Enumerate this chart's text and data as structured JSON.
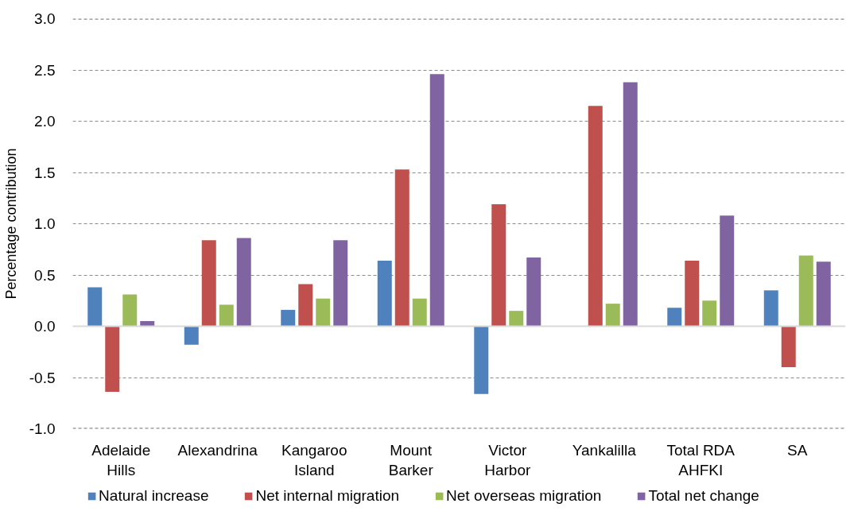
{
  "chart_data": {
    "type": "bar",
    "ylabel": "Percentage contribution",
    "categories": [
      "Adelaide Hills",
      "Alexandrina",
      "Kangaroo Island",
      "Mount Barker",
      "Victor Harbor",
      "Yankalilla",
      "Total RDA AHFKI",
      "SA"
    ],
    "series": [
      {
        "name": "Natural increase",
        "color": "#4f81bd",
        "values": [
          0.38,
          -0.18,
          0.16,
          0.64,
          -0.66,
          0,
          0.18,
          0.35
        ]
      },
      {
        "name": "Net internal migration",
        "color": "#c0504d",
        "values": [
          -0.64,
          0.84,
          0.41,
          1.53,
          1.19,
          2.15,
          0.64,
          -0.4
        ]
      },
      {
        "name": "Net overseas migration",
        "color": "#9bbb59",
        "values": [
          0.31,
          0.21,
          0.27,
          0.27,
          0.15,
          0.22,
          0.25,
          0.69
        ]
      },
      {
        "name": "Total net change",
        "color": "#8064a2",
        "values": [
          0.05,
          0.86,
          0.84,
          2.46,
          0.67,
          2.38,
          1.08,
          0.63
        ]
      }
    ],
    "ylim": [
      -1.0,
      3.0
    ],
    "yticks": [
      {
        "value": -1.0,
        "label": "-1.0"
      },
      {
        "value": -0.5,
        "label": "-0.5"
      },
      {
        "value": 0,
        "label": "0.0"
      },
      {
        "value": 0.5,
        "label": "0.5"
      },
      {
        "value": 1.0,
        "label": "1.0"
      },
      {
        "value": 1.5,
        "label": "1.5"
      },
      {
        "value": 2.0,
        "label": "2.0"
      },
      {
        "value": 2.5,
        "label": "2.5"
      },
      {
        "value": 3.0,
        "label": "3.0"
      }
    ],
    "grid": "y",
    "legend": "bottom"
  }
}
